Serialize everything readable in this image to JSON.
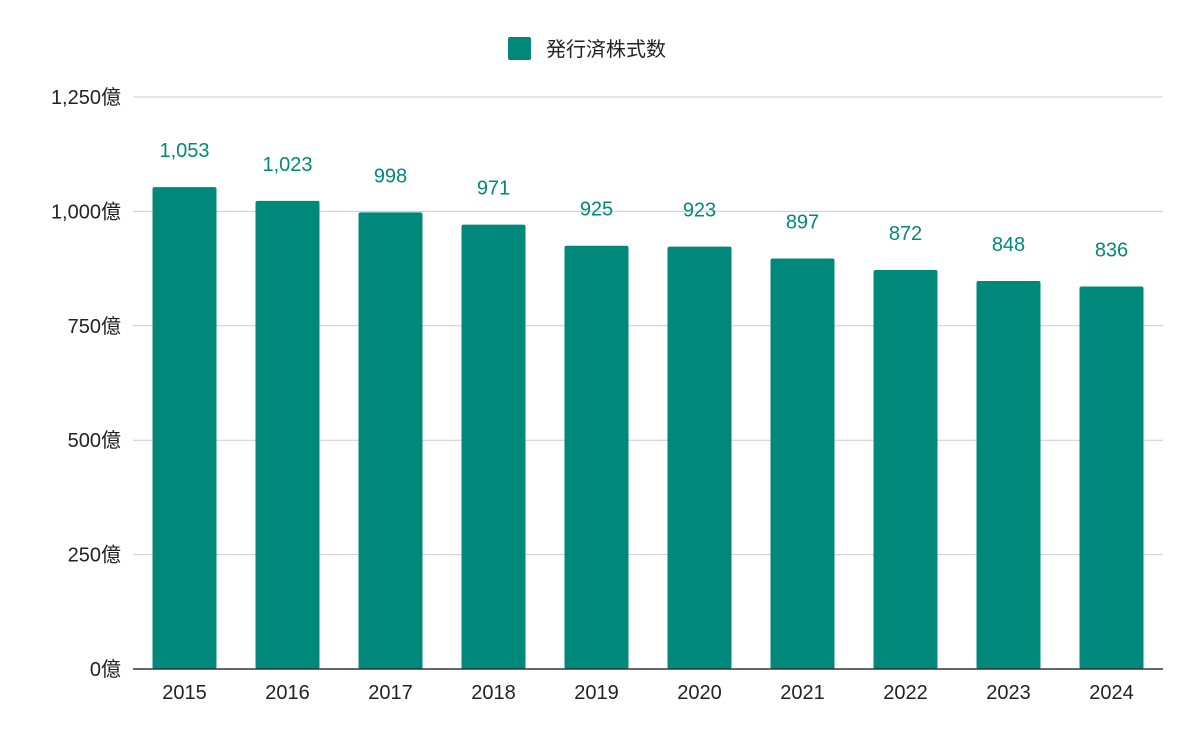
{
  "chart_data": {
    "type": "bar",
    "title": "",
    "xlabel": "",
    "ylabel": "",
    "legend": {
      "position": "top",
      "entries": [
        "発行済株式数"
      ]
    },
    "categories": [
      "2015",
      "2016",
      "2017",
      "2018",
      "2019",
      "2020",
      "2021",
      "2022",
      "2023",
      "2024"
    ],
    "series": [
      {
        "name": "発行済株式数",
        "color": "#00897b",
        "values": [
          1053,
          1023,
          998,
          971,
          925,
          923,
          897,
          872,
          848,
          836
        ],
        "labels": [
          "1,053",
          "1,023",
          "998",
          "971",
          "925",
          "923",
          "897",
          "872",
          "848",
          "836"
        ]
      }
    ],
    "ylim": [
      0,
      1250
    ],
    "y_ticks": [
      {
        "value": 0,
        "label": "0億"
      },
      {
        "value": 250,
        "label": "250億"
      },
      {
        "value": 500,
        "label": "500億"
      },
      {
        "value": 750,
        "label": "750億"
      },
      {
        "value": 1000,
        "label": "1,000億"
      },
      {
        "value": 1250,
        "label": "1,250億"
      }
    ],
    "grid": true
  }
}
